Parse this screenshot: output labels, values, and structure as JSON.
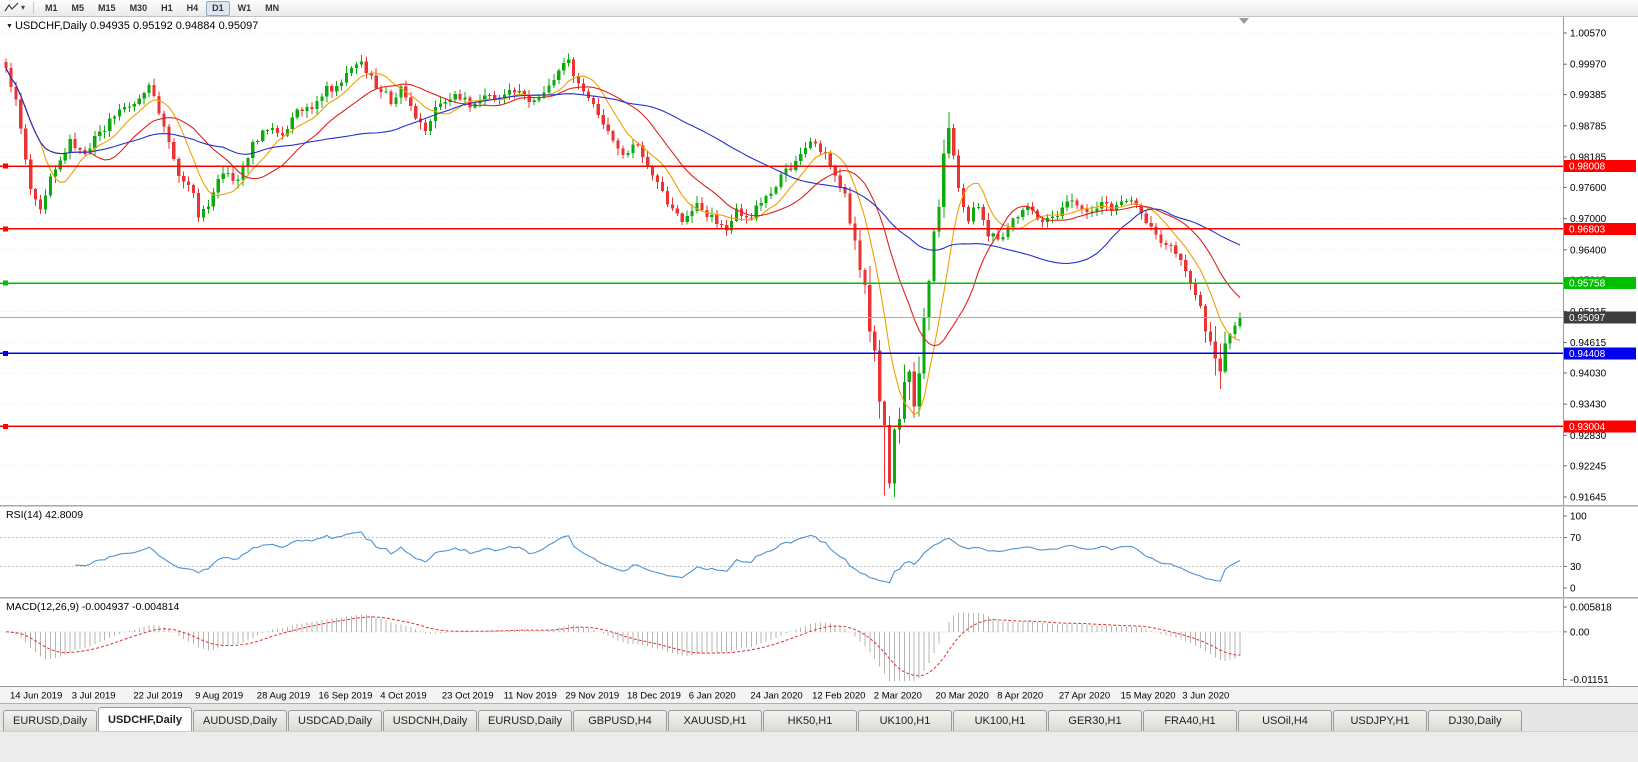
{
  "toolbar": {
    "timeframes": [
      "M1",
      "M5",
      "M15",
      "M30",
      "H1",
      "H4",
      "D1",
      "W1",
      "MN"
    ],
    "active_timeframe": "D1",
    "caret_icon": "▾"
  },
  "chart_title": {
    "collapse_icon": "▼",
    "symbol": "USDCHF,Daily",
    "ohlc": "0.94935 0.95192 0.94884 0.95097"
  },
  "chart_data": {
    "type": "candlestick",
    "title": "USDCHF,Daily",
    "y_axis_ticks": [
      "1.00570",
      "0.99970",
      "0.99385",
      "0.98785",
      "0.98185",
      "0.97600",
      "0.97000",
      "0.96400",
      "0.95815",
      "0.95215",
      "0.94615",
      "0.94030",
      "0.93430",
      "0.92830",
      "0.92245",
      "0.91645"
    ],
    "x_axis_ticks": [
      "14 Jun 2019",
      "3 Jul 2019",
      "22 Jul 2019",
      "9 Aug 2019",
      "28 Aug 2019",
      "16 Sep 2019",
      "4 Oct 2019",
      "23 Oct 2019",
      "11 Nov 2019",
      "29 Nov 2019",
      "18 Dec 2019",
      "6 Jan 2020",
      "24 Jan 2020",
      "12 Feb 2020",
      "2 Mar 2020",
      "20 Mar 2020",
      "8 Apr 2020",
      "27 Apr 2020",
      "15 May 2020",
      "3 Jun 2020"
    ],
    "horizontal_lines": [
      {
        "price": 0.98008,
        "label": "0.98008",
        "color": "#ff0000"
      },
      {
        "price": 0.96803,
        "label": "0.96803",
        "color": "#ff0000"
      },
      {
        "price": 0.95758,
        "label": "0.95758",
        "color": "#00c000"
      },
      {
        "price": 0.94408,
        "label": "0.94408",
        "color": "#0000ee"
      },
      {
        "price": 0.93004,
        "label": "0.93004",
        "color": "#ff0000"
      }
    ],
    "current_price": {
      "value": 0.95097,
      "label": "0.95097",
      "tag_color": "#3d3d3d"
    },
    "last_candle": {
      "open": 0.94935,
      "high": 0.95192,
      "low": 0.94884,
      "close": 0.95097
    },
    "total_days": 251,
    "close_anchors": [
      [
        0,
        0.9985
      ],
      [
        2,
        0.9935
      ],
      [
        5,
        0.976
      ],
      [
        7,
        0.9718
      ],
      [
        10,
        0.98
      ],
      [
        13,
        0.9845
      ],
      [
        16,
        0.9825
      ],
      [
        19,
        0.9868
      ],
      [
        22,
        0.9895
      ],
      [
        25,
        0.9915
      ],
      [
        29,
        0.9958
      ],
      [
        32,
        0.987
      ],
      [
        35,
        0.9788
      ],
      [
        38,
        0.9742
      ],
      [
        39,
        0.97
      ],
      [
        41,
        0.9728
      ],
      [
        44,
        0.979
      ],
      [
        47,
        0.9772
      ],
      [
        50,
        0.984
      ],
      [
        53,
        0.9878
      ],
      [
        56,
        0.9858
      ],
      [
        59,
        0.9902
      ],
      [
        62,
        0.9918
      ],
      [
        65,
        0.9948
      ],
      [
        68,
        0.9958
      ],
      [
        71,
        1.0005
      ],
      [
        73,
        0.9988
      ],
      [
        75,
        0.9958
      ],
      [
        78,
        0.9928
      ],
      [
        80,
        0.9952
      ],
      [
        83,
        0.9898
      ],
      [
        85,
        0.9868
      ],
      [
        88,
        0.9928
      ],
      [
        91,
        0.994
      ],
      [
        94,
        0.9918
      ],
      [
        97,
        0.993
      ],
      [
        100,
        0.9928
      ],
      [
        103,
        0.9945
      ],
      [
        106,
        0.9928
      ],
      [
        109,
        0.9948
      ],
      [
        112,
        0.9988
      ],
      [
        114,
        1.0002
      ],
      [
        116,
        0.9962
      ],
      [
        119,
        0.9928
      ],
      [
        122,
        0.9868
      ],
      [
        125,
        0.9828
      ],
      [
        128,
        0.984
      ],
      [
        131,
        0.9788
      ],
      [
        134,
        0.9728
      ],
      [
        137,
        0.9692
      ],
      [
        140,
        0.9722
      ],
      [
        143,
        0.97
      ],
      [
        146,
        0.9678
      ],
      [
        148,
        0.9712
      ],
      [
        150,
        0.9698
      ],
      [
        153,
        0.9728
      ],
      [
        156,
        0.9768
      ],
      [
        159,
        0.98
      ],
      [
        162,
        0.9838
      ],
      [
        164,
        0.985
      ],
      [
        166,
        0.9818
      ],
      [
        168,
        0.9778
      ],
      [
        170,
        0.9745
      ],
      [
        172,
        0.964
      ],
      [
        174,
        0.9558
      ],
      [
        176,
        0.943
      ],
      [
        178,
        0.928
      ],
      [
        179,
        0.921
      ],
      [
        181,
        0.934
      ],
      [
        183,
        0.942
      ],
      [
        184,
        0.933
      ],
      [
        186,
        0.952
      ],
      [
        188,
        0.965
      ],
      [
        190,
        0.98
      ],
      [
        191,
        0.9878
      ],
      [
        193,
        0.976
      ],
      [
        195,
        0.97
      ],
      [
        197,
        0.973
      ],
      [
        199,
        0.9672
      ],
      [
        201,
        0.9658
      ],
      [
        204,
        0.97
      ],
      [
        207,
        0.9728
      ],
      [
        210,
        0.9688
      ],
      [
        213,
        0.9712
      ],
      [
        216,
        0.9742
      ],
      [
        219,
        0.9708
      ],
      [
        222,
        0.9728
      ],
      [
        225,
        0.9718
      ],
      [
        228,
        0.9742
      ],
      [
        231,
        0.9698
      ],
      [
        234,
        0.9658
      ],
      [
        237,
        0.9638
      ],
      [
        239,
        0.9598
      ],
      [
        241,
        0.9558
      ],
      [
        243,
        0.949
      ],
      [
        245,
        0.9408
      ],
      [
        246,
        0.9392
      ],
      [
        248,
        0.9478
      ],
      [
        250,
        0.951
      ]
    ],
    "volatile_windows": [
      [
        172,
        190
      ],
      [
        243,
        247
      ]
    ],
    "spike_lows": [
      [
        178,
        0.9167
      ],
      [
        180,
        0.9205
      ]
    ],
    "spike_highs": [
      [
        191,
        0.9905
      ]
    ],
    "moving_averages": [
      {
        "period": 8,
        "color": "#f0a000"
      },
      {
        "period": 18,
        "color": "#e02222"
      },
      {
        "period": 45,
        "color": "#2233cc"
      }
    ],
    "up_color": "#0caa0c",
    "down_color": "#eb3333"
  },
  "rsi_panel": {
    "label": "RSI(14)",
    "value": "42.8009",
    "axis_labels": [
      "100",
      "70",
      "30",
      "0"
    ],
    "upper_level": 70,
    "lower_level": 30,
    "line_color": "#4f94d4"
  },
  "macd_panel": {
    "label": "MACD(12,26,9)",
    "value": "-0.004937 -0.004814",
    "axis_labels": [
      "0.005818",
      "0.00",
      "-0.01151"
    ],
    "axis_max": 0.005818,
    "axis_min": -0.01151,
    "histogram_color": "#b6b6b6",
    "signal_color": "#e03030"
  },
  "date_axis": [
    "14 Jun 2019",
    "3 Jul 2019",
    "22 Jul 2019",
    "9 Aug 2019",
    "28 Aug 2019",
    "16 Sep 2019",
    "4 Oct 2019",
    "23 Oct 2019",
    "11 Nov 2019",
    "29 Nov 2019",
    "18 Dec 2019",
    "6 Jan 2020",
    "24 Jan 2020",
    "12 Feb 2020",
    "2 Mar 2020",
    "20 Mar 2020",
    "8 Apr 2020",
    "27 Apr 2020",
    "15 May 2020",
    "3 Jun 2020"
  ],
  "tabs": {
    "active_index": 1,
    "items": [
      "EURUSD,Daily",
      "USDCHF,Daily",
      "AUDUSD,Daily",
      "USDCAD,Daily",
      "USDCNH,Daily",
      "EURUSD,Daily",
      "GBPUSD,H4",
      "XAUUSD,H1",
      "HK50,H1",
      "UK100,H1",
      "UK100,H1",
      "GER30,H1",
      "FRA40,H1",
      "USOil,H4",
      "USDJPY,H1",
      "DJ30,Daily"
    ]
  }
}
